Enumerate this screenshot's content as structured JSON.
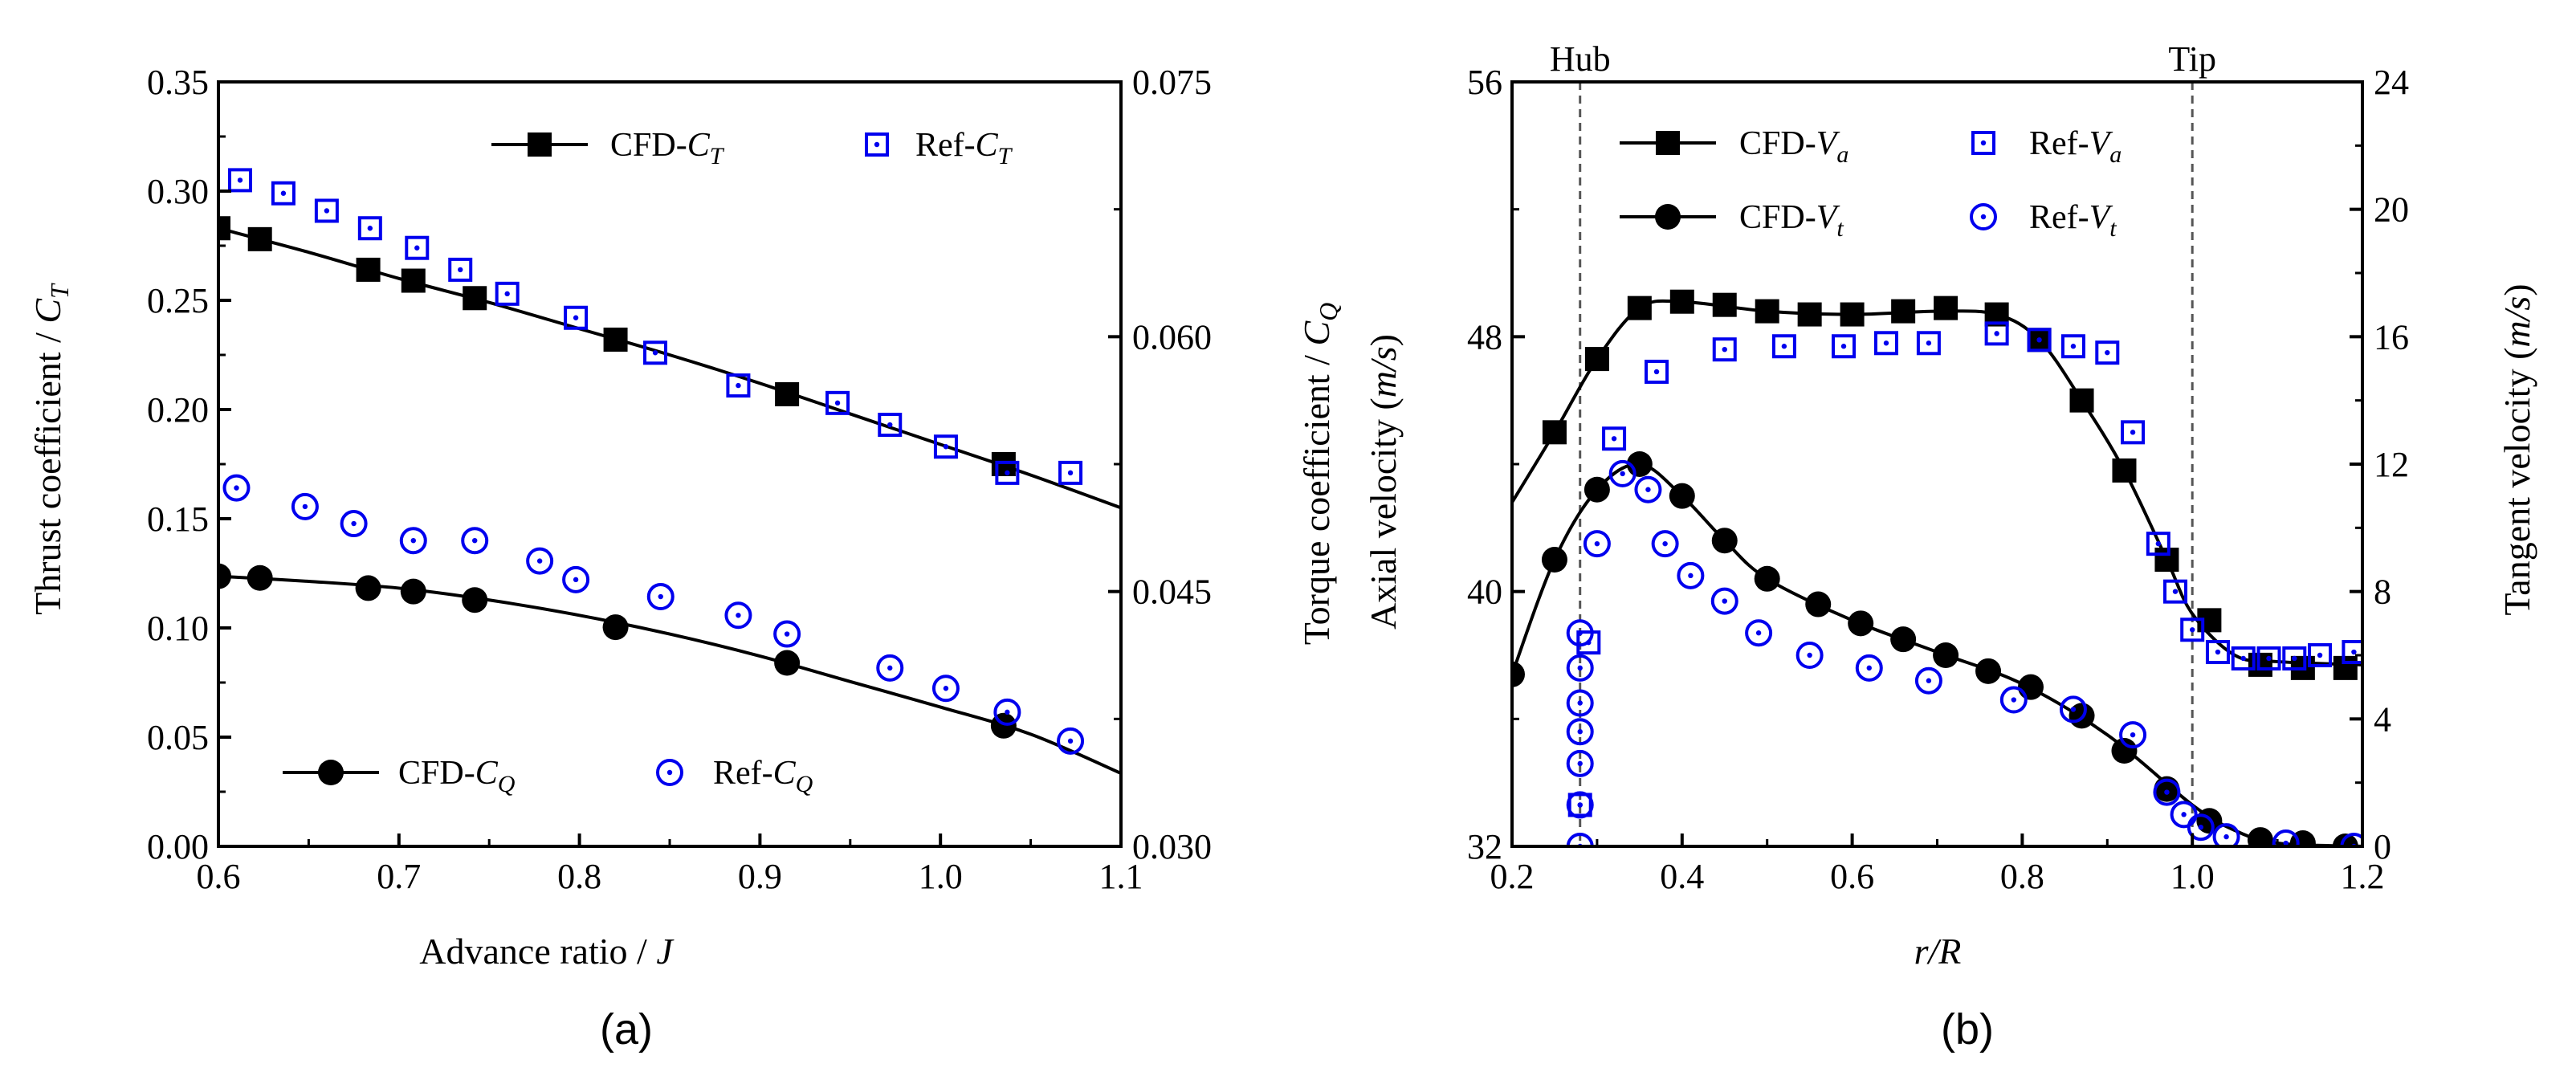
{
  "chart_data": [
    {
      "type": "line",
      "panel_label": "(a)",
      "xlabel": "Advance ratio / J",
      "ylabel": "Thrust coefficient / C_T",
      "ylabel_right": "Torque coefficient / C_Q",
      "xlim": [
        0.6,
        1.1
      ],
      "ylim": [
        0.0,
        0.35
      ],
      "ylim_right": [
        0.03,
        0.075
      ],
      "x_ticks": [
        "0.6",
        "0.7",
        "0.8",
        "0.9",
        "1.0",
        "1.1"
      ],
      "y_ticks": [
        "0.00",
        "0.05",
        "0.10",
        "0.15",
        "0.20",
        "0.25",
        "0.30",
        "0.35"
      ],
      "y_ticks_right": [
        "0.030",
        "0.045",
        "0.060",
        "0.075"
      ],
      "grid": false,
      "series": [
        {
          "name": "CFD-C_T",
          "axis": "left",
          "marker": "filled-square",
          "line": true,
          "color": "#000000",
          "x": [
            0.6,
            0.623,
            0.683,
            0.708,
            0.742,
            0.82,
            0.915,
            1.035
          ],
          "y": [
            0.283,
            0.278,
            0.264,
            0.259,
            0.251,
            0.232,
            0.207,
            0.175
          ],
          "curve_x": [
            0.6,
            0.65,
            0.7,
            0.75,
            0.8,
            0.85,
            0.9,
            0.95,
            1.0,
            1.05,
            1.1
          ],
          "curve_y": [
            0.283,
            0.272,
            0.26,
            0.249,
            0.237,
            0.225,
            0.212,
            0.198,
            0.184,
            0.17,
            0.155
          ]
        },
        {
          "name": "Ref-C_T",
          "axis": "left",
          "marker": "open-square-dot",
          "line": false,
          "color": "#0000ee",
          "x": [
            0.612,
            0.636,
            0.66,
            0.684,
            0.71,
            0.734,
            0.76,
            0.798,
            0.842,
            0.888,
            0.943,
            0.972,
            1.003,
            1.037,
            1.072
          ],
          "y": [
            0.305,
            0.299,
            0.291,
            0.283,
            0.274,
            0.264,
            0.253,
            0.242,
            0.226,
            0.211,
            0.203,
            0.193,
            0.183,
            0.171,
            0.171
          ]
        },
        {
          "name": "CFD-C_Q",
          "axis": "right",
          "marker": "filled-circle",
          "line": true,
          "color": "#000000",
          "x": [
            0.6,
            0.623,
            0.683,
            0.708,
            0.742,
            0.82,
            0.915,
            1.035
          ],
          "y": [
            0.0459,
            0.0458,
            0.0452,
            0.045,
            0.0445,
            0.0429,
            0.0408,
            0.0371
          ],
          "curve_x": [
            0.6,
            0.65,
            0.7,
            0.75,
            0.8,
            0.85,
            0.9,
            0.95,
            1.0,
            1.05,
            1.1
          ],
          "curve_y": [
            0.0459,
            0.0456,
            0.0452,
            0.0445,
            0.0436,
            0.0425,
            0.0412,
            0.0397,
            0.0382,
            0.0366,
            0.0343
          ]
        },
        {
          "name": "Ref-C_Q",
          "axis": "right",
          "marker": "open-circle-dot",
          "line": false,
          "color": "#0000ee",
          "x": [
            0.61,
            0.648,
            0.675,
            0.708,
            0.742,
            0.778,
            0.798,
            0.845,
            0.888,
            0.915,
            0.972,
            1.003,
            1.037,
            1.072
          ],
          "y": [
            0.0511,
            0.05,
            0.049,
            0.048,
            0.048,
            0.0468,
            0.0457,
            0.0447,
            0.0436,
            0.0425,
            0.0405,
            0.0393,
            0.0379,
            0.0362
          ]
        }
      ],
      "legend": [
        {
          "name": "CFD-",
          "sub": "T",
          "base": "C"
        },
        {
          "name": "Ref-",
          "sub": "T",
          "base": "C"
        },
        {
          "name": "CFD-",
          "sub": "Q",
          "base": "C"
        },
        {
          "name": "Ref-",
          "sub": "Q",
          "base": "C"
        }
      ]
    },
    {
      "type": "line",
      "panel_label": "(b)",
      "xlabel": "r/R",
      "ylabel": "Axial velocity (m/s)",
      "ylabel_right": "Tangent velocity (m/s)",
      "xlim": [
        0.2,
        1.2
      ],
      "ylim": [
        32,
        56
      ],
      "ylim_right": [
        0,
        24
      ],
      "x_ticks": [
        "0.2",
        "0.4",
        "0.6",
        "0.8",
        "1.0",
        "1.2"
      ],
      "y_ticks": [
        "32",
        "40",
        "48",
        "56"
      ],
      "y_ticks_right": [
        "0",
        "4",
        "8",
        "12",
        "16",
        "20",
        "24"
      ],
      "grid": false,
      "annotations": [
        {
          "text": "Hub",
          "x": 0.28
        },
        {
          "text": "Tip",
          "x": 1.0
        }
      ],
      "series": [
        {
          "name": "CFD-V_a",
          "axis": "left",
          "marker": "filled-square",
          "line": true,
          "color": "#000000",
          "x": [
            0.25,
            0.3,
            0.35,
            0.4,
            0.45,
            0.5,
            0.55,
            0.6,
            0.66,
            0.71,
            0.77,
            0.82,
            0.87,
            0.92,
            0.97,
            1.02,
            1.08,
            1.13,
            1.18
          ],
          "y": [
            45.0,
            47.3,
            48.9,
            49.1,
            49.0,
            48.8,
            48.7,
            48.7,
            48.8,
            48.9,
            48.7,
            47.9,
            46.0,
            43.8,
            41.0,
            39.1,
            37.7,
            37.6,
            37.6
          ],
          "curve_x": [
            0.2,
            0.25,
            0.3,
            0.35,
            0.4,
            0.5,
            0.6,
            0.7,
            0.77,
            0.82,
            0.87,
            0.92,
            0.97,
            1.0,
            1.05,
            1.1,
            1.2
          ],
          "curve_y": [
            42.8,
            45.0,
            47.3,
            48.9,
            49.1,
            48.8,
            48.7,
            48.8,
            48.7,
            47.9,
            46.0,
            43.8,
            41.0,
            39.3,
            38.0,
            37.8,
            37.7
          ]
        },
        {
          "name": "Ref-V_a",
          "axis": "left",
          "marker": "open-square-dot",
          "line": false,
          "color": "#0000ee",
          "x": [
            0.28,
            0.29,
            0.32,
            0.37,
            0.45,
            0.52,
            0.59,
            0.64,
            0.69,
            0.77,
            0.82,
            0.86,
            0.9,
            0.93,
            0.96,
            0.98,
            1.0,
            1.03,
            1.06,
            1.09,
            1.12,
            1.15,
            1.19
          ],
          "y": [
            33.3,
            38.4,
            44.8,
            46.9,
            47.6,
            47.7,
            47.7,
            47.8,
            47.8,
            48.1,
            47.9,
            47.7,
            47.5,
            45.0,
            41.5,
            40.0,
            38.8,
            38.1,
            37.9,
            37.9,
            37.9,
            38.0,
            38.1
          ]
        },
        {
          "name": "CFD-V_t",
          "axis": "right",
          "marker": "filled-circle",
          "line": true,
          "color": "#000000",
          "x": [
            0.2,
            0.25,
            0.3,
            0.35,
            0.4,
            0.45,
            0.5,
            0.56,
            0.61,
            0.66,
            0.71,
            0.76,
            0.81,
            0.87,
            0.92,
            0.97,
            1.02,
            1.08,
            1.13,
            1.18
          ],
          "y": [
            5.4,
            9.0,
            11.2,
            12.0,
            11.0,
            9.6,
            8.4,
            7.6,
            7.0,
            6.5,
            6.0,
            5.5,
            5.0,
            4.1,
            3.0,
            1.8,
            0.8,
            0.2,
            0.1,
            0.0
          ],
          "curve_x": [
            0.2,
            0.25,
            0.3,
            0.35,
            0.4,
            0.45,
            0.5,
            0.6,
            0.7,
            0.8,
            0.9,
            1.0,
            1.05,
            1.1,
            1.2
          ],
          "curve_y": [
            5.4,
            9.0,
            11.2,
            12.0,
            11.0,
            9.6,
            8.4,
            7.1,
            6.1,
            5.1,
            3.5,
            1.3,
            0.5,
            0.1,
            0.0
          ]
        },
        {
          "name": "Ref-V_t",
          "axis": "right",
          "marker": "open-circle-dot",
          "line": false,
          "color": "#0000ee",
          "x": [
            0.28,
            0.28,
            0.28,
            0.28,
            0.28,
            0.28,
            0.28,
            0.3,
            0.33,
            0.36,
            0.38,
            0.41,
            0.45,
            0.49,
            0.55,
            0.62,
            0.69,
            0.79,
            0.86,
            0.93,
            0.97,
            0.99,
            1.01,
            1.04,
            1.11,
            1.19
          ],
          "y": [
            0.0,
            1.3,
            2.6,
            3.6,
            4.5,
            5.6,
            6.7,
            9.5,
            11.7,
            11.2,
            9.5,
            8.5,
            7.7,
            6.7,
            6.0,
            5.6,
            5.2,
            4.6,
            4.3,
            3.5,
            1.7,
            1.0,
            0.6,
            0.3,
            0.1,
            0.0
          ]
        }
      ],
      "legend": [
        {
          "name": "CFD-",
          "sub": "a",
          "base": "V"
        },
        {
          "name": "Ref-",
          "sub": "a",
          "base": "V"
        },
        {
          "name": "CFD-",
          "sub": "t",
          "base": "V"
        },
        {
          "name": "Ref-",
          "sub": "t",
          "base": "V"
        }
      ]
    }
  ]
}
